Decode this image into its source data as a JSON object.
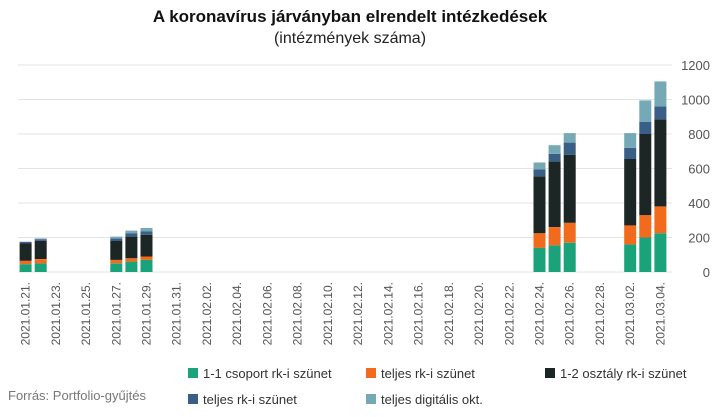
{
  "chart_data": {
    "type": "bar",
    "stacked": true,
    "title": "A koronavírus járványban elrendelt intézkedések",
    "subtitle": "(intézmények száma)",
    "source": "Forrás: Portfolio-gyűjtés",
    "ylim": [
      0,
      1200
    ],
    "yticks": [
      0,
      200,
      400,
      600,
      800,
      1000,
      1200
    ],
    "y_axis_side": "right",
    "grid": true,
    "legend_position": "bottom",
    "categories": [
      "2021.01.21.",
      "2021.01.22.",
      "2021.01.23.",
      "2021.01.24.",
      "2021.01.25.",
      "2021.01.26.",
      "2021.01.27.",
      "2021.01.28.",
      "2021.01.29.",
      "2021.01.30.",
      "2021.01.31.",
      "2021.02.01.",
      "2021.02.02.",
      "2021.02.03.",
      "2021.02.04.",
      "2021.02.05.",
      "2021.02.06.",
      "2021.02.07.",
      "2021.02.08.",
      "2021.02.09.",
      "2021.02.10.",
      "2021.02.11.",
      "2021.02.12.",
      "2021.02.13.",
      "2021.02.14.",
      "2021.02.15.",
      "2021.02.16.",
      "2021.02.17.",
      "2021.02.18.",
      "2021.02.19.",
      "2021.02.20.",
      "2021.02.21.",
      "2021.02.22.",
      "2021.02.23.",
      "2021.02.24.",
      "2021.02.25.",
      "2021.02.26.",
      "2021.02.27.",
      "2021.02.28.",
      "2021.03.01.",
      "2021.03.02.",
      "2021.03.03.",
      "2021.03.04."
    ],
    "tick_labels": [
      "2021.01.21.",
      "2021.01.23.",
      "2021.01.25.",
      "2021.01.27.",
      "2021.01.29.",
      "2021.01.31.",
      "2021.02.02.",
      "2021.02.04.",
      "2021.02.06.",
      "2021.02.08.",
      "2021.02.10.",
      "2021.02.12.",
      "2021.02.14.",
      "2021.02.16.",
      "2021.02.18.",
      "2021.02.20.",
      "2021.02.22.",
      "2021.02.24.",
      "2021.02.26.",
      "2021.02.28.",
      "2021.03.02.",
      "2021.03.04."
    ],
    "series": [
      {
        "name": "1-1 csoport rk-i szünet",
        "color": "#1aa37a",
        "values": [
          45,
          50,
          0,
          0,
          0,
          0,
          50,
          60,
          70,
          0,
          0,
          0,
          0,
          0,
          0,
          0,
          0,
          0,
          0,
          0,
          0,
          0,
          0,
          0,
          0,
          0,
          0,
          0,
          0,
          0,
          0,
          0,
          0,
          0,
          140,
          155,
          170,
          0,
          0,
          0,
          160,
          200,
          225
        ]
      },
      {
        "name": "teljes rk-i szünet",
        "color": "#f26a1b",
        "values": [
          20,
          25,
          0,
          0,
          0,
          0,
          20,
          20,
          20,
          0,
          0,
          0,
          0,
          0,
          0,
          0,
          0,
          0,
          0,
          0,
          0,
          0,
          0,
          0,
          0,
          0,
          0,
          0,
          0,
          0,
          0,
          0,
          0,
          0,
          85,
          105,
          115,
          0,
          0,
          0,
          110,
          130,
          155
        ]
      },
      {
        "name": "1-2 osztály rk-i szünet",
        "color": "#1c2624",
        "values": [
          100,
          105,
          0,
          0,
          0,
          0,
          110,
          125,
          125,
          0,
          0,
          0,
          0,
          0,
          0,
          0,
          0,
          0,
          0,
          0,
          0,
          0,
          0,
          0,
          0,
          0,
          0,
          0,
          0,
          0,
          0,
          0,
          0,
          0,
          330,
          380,
          395,
          0,
          0,
          0,
          385,
          470,
          505
        ]
      },
      {
        "name": "teljes rk-i szünet",
        "color": "#3a5f86",
        "values": [
          10,
          10,
          0,
          0,
          0,
          0,
          15,
          20,
          20,
          0,
          0,
          0,
          0,
          0,
          0,
          0,
          0,
          0,
          0,
          0,
          0,
          0,
          0,
          0,
          0,
          0,
          0,
          0,
          0,
          0,
          0,
          0,
          0,
          0,
          40,
          45,
          70,
          0,
          0,
          0,
          65,
          70,
          75
        ]
      },
      {
        "name": "teljes digitális okt.",
        "color": "#76a9b6",
        "values": [
          0,
          5,
          0,
          0,
          0,
          0,
          10,
          15,
          20,
          0,
          0,
          0,
          0,
          0,
          0,
          0,
          0,
          0,
          0,
          0,
          0,
          0,
          0,
          0,
          0,
          0,
          0,
          0,
          0,
          0,
          0,
          0,
          0,
          0,
          40,
          50,
          55,
          0,
          0,
          0,
          85,
          125,
          145
        ]
      }
    ]
  }
}
